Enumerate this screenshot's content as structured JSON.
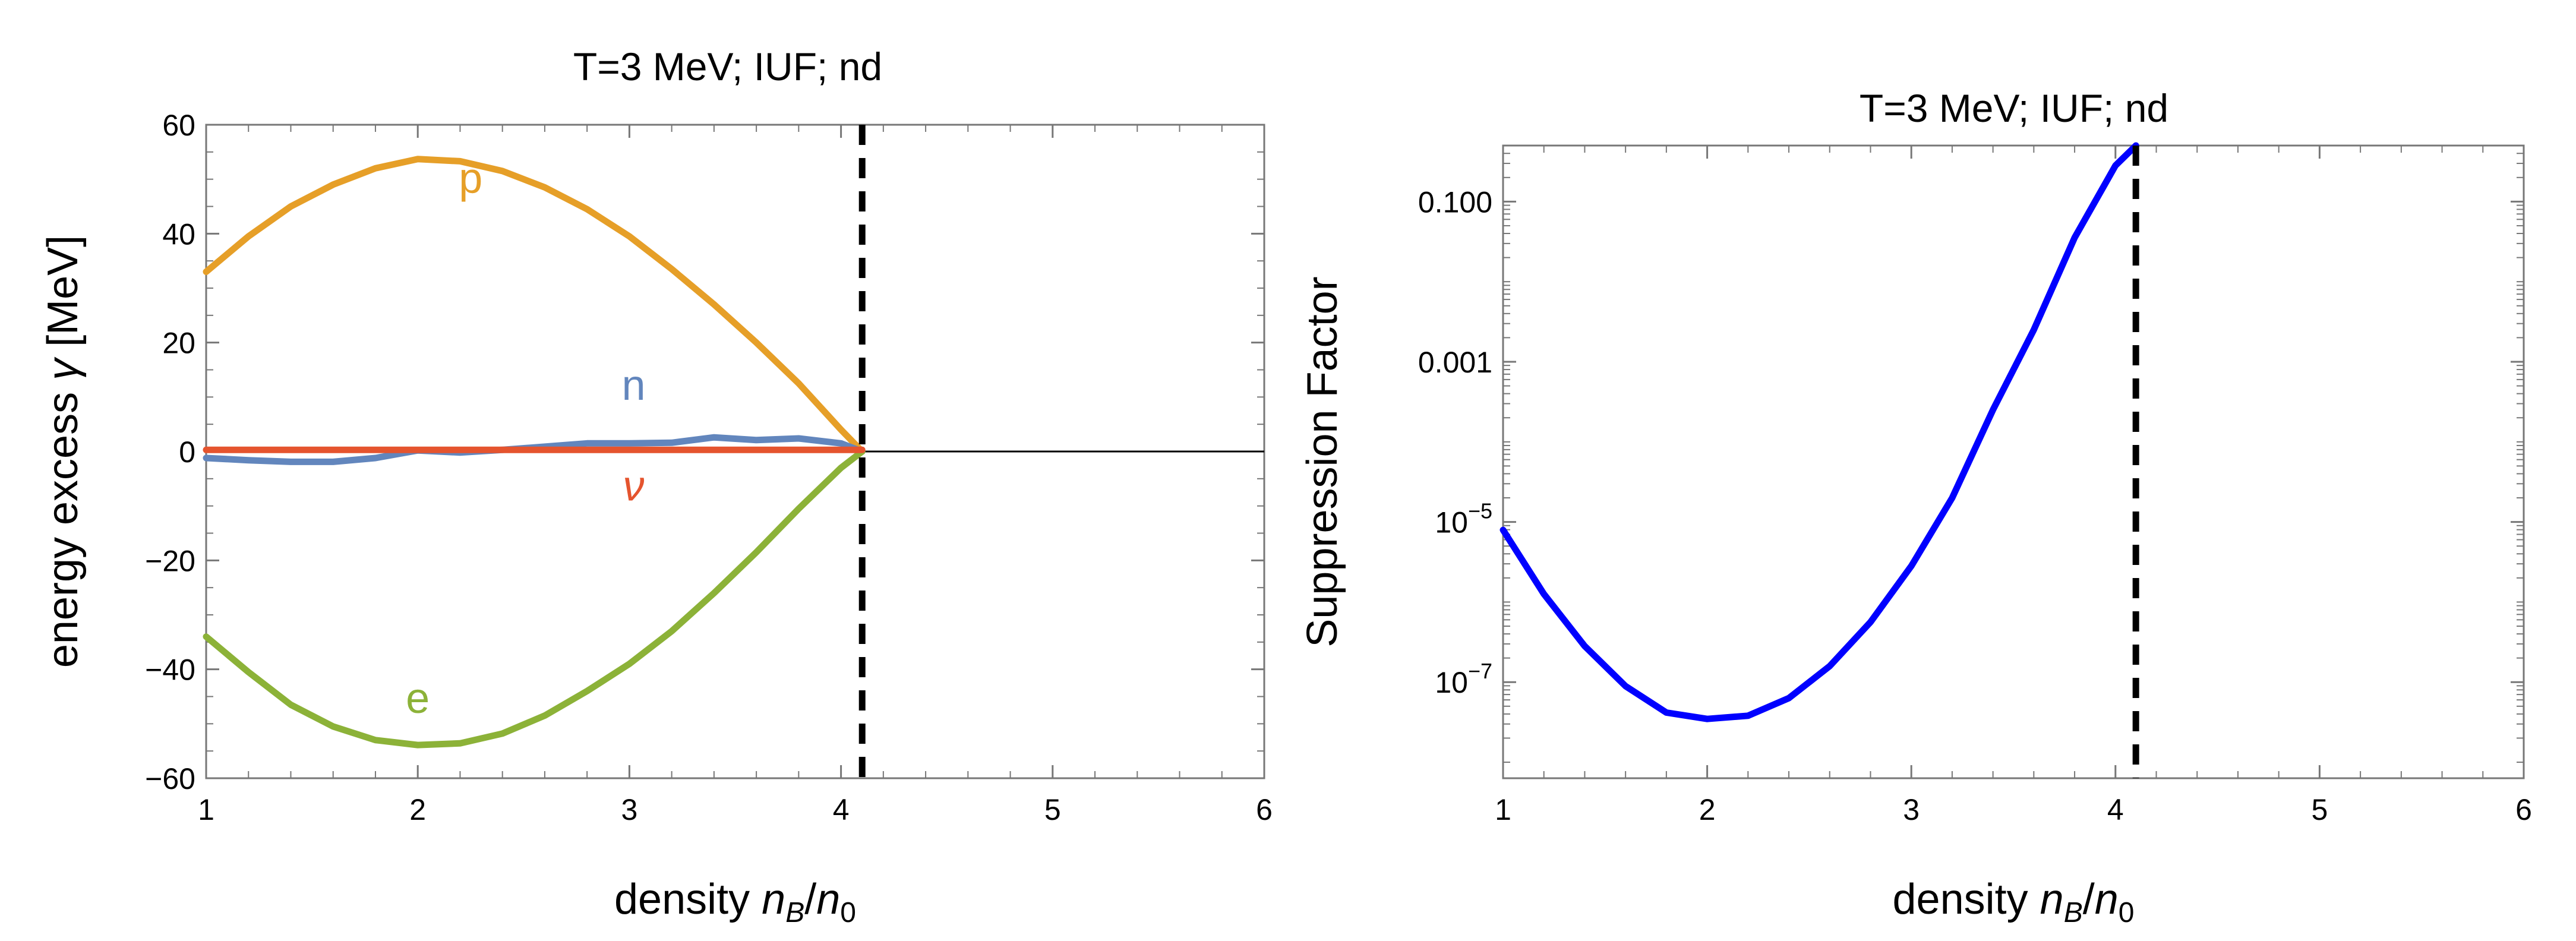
{
  "chart_data": [
    {
      "type": "line",
      "title": "T=3 MeV; IUF; nd",
      "xlabel": {
        "main": "density ",
        "n1": "n",
        "sub1": "B",
        "slash": "/",
        "n2": "n",
        "sub2": "0"
      },
      "ylabel": {
        "main": "energy excess ",
        "sym": "γ",
        "unit": " [MeV]"
      },
      "xlim": [
        1,
        6
      ],
      "ylim": [
        -60,
        60
      ],
      "xticks": [
        1,
        2,
        3,
        4,
        5,
        6
      ],
      "yticks": [
        -60,
        -40,
        -20,
        0,
        20,
        40,
        60
      ],
      "grid": false,
      "zero_line": true,
      "vline_x": 4.1,
      "series": [
        {
          "name": "p",
          "color": "#E69F28",
          "x": [
            1.0,
            1.2,
            1.4,
            1.6,
            1.8,
            2.0,
            2.2,
            2.4,
            2.6,
            2.8,
            3.0,
            3.2,
            3.4,
            3.6,
            3.8,
            4.0,
            4.1
          ],
          "y": [
            33,
            39.5,
            45,
            49,
            52,
            53.7,
            53.3,
            51.5,
            48.5,
            44.5,
            39.5,
            33.5,
            27,
            20,
            12.5,
            4,
            0
          ],
          "label_pos": [
            2.25,
            47.5
          ]
        },
        {
          "name": "n",
          "color": "#6286BD",
          "x": [
            1.0,
            1.2,
            1.4,
            1.6,
            1.8,
            2.0,
            2.2,
            2.4,
            2.6,
            2.8,
            3.0,
            3.2,
            3.4,
            3.6,
            3.8,
            4.0,
            4.1
          ],
          "y": [
            -1.2,
            -1.6,
            -1.9,
            -1.9,
            -1.2,
            0.2,
            -0.2,
            0.3,
            0.9,
            1.5,
            1.5,
            1.6,
            2.6,
            2.1,
            2.4,
            1.5,
            0
          ],
          "label_pos": [
            3.02,
            9.5
          ]
        },
        {
          "name": "e",
          "color": "#8CB238",
          "x": [
            1.0,
            1.2,
            1.4,
            1.6,
            1.8,
            2.0,
            2.2,
            2.4,
            2.6,
            2.8,
            3.0,
            3.2,
            3.4,
            3.6,
            3.8,
            4.0,
            4.1
          ],
          "y": [
            -34,
            -40.5,
            -46.5,
            -50.5,
            -53,
            -53.9,
            -53.6,
            -51.8,
            -48.5,
            -44,
            -39,
            -33,
            -26,
            -18.5,
            -10.5,
            -3,
            0
          ],
          "label_pos": [
            2.0,
            -48
          ]
        },
        {
          "name": "ν",
          "color": "#E5542E",
          "x": [
            1.0,
            4.1
          ],
          "y": [
            0.3,
            0.3
          ],
          "label_pos": [
            3.02,
            -9
          ]
        }
      ]
    },
    {
      "type": "line",
      "title": "T=3 MeV; IUF; nd",
      "xlabel": {
        "main": "density ",
        "n1": "n",
        "sub1": "B",
        "slash": "/",
        "n2": "n",
        "sub2": "0"
      },
      "ylabel": "Suppression Factor",
      "xlim": [
        1,
        6
      ],
      "ylim_log10": [
        -8.2,
        -0.3
      ],
      "yscale": "log",
      "xticks": [
        1,
        2,
        3,
        4,
        5,
        6
      ],
      "yticks": [
        {
          "exp": -7,
          "text": "10",
          "sup": "−7"
        },
        {
          "exp": -5,
          "text": "10",
          "sup": "−5"
        },
        {
          "exp": -3,
          "text": "0.001",
          "sup": ""
        },
        {
          "exp": -1,
          "text": "0.100",
          "sup": ""
        }
      ],
      "grid": false,
      "vline_x": 4.1,
      "series": [
        {
          "name": "",
          "color": "#0000FF",
          "x": [
            1.0,
            1.2,
            1.4,
            1.6,
            1.8,
            2.0,
            2.2,
            2.4,
            2.6,
            2.8,
            3.0,
            3.2,
            3.4,
            3.6,
            3.8,
            4.0,
            4.1
          ],
          "y_log10": [
            -5.1,
            -5.9,
            -6.55,
            -7.05,
            -7.38,
            -7.46,
            -7.42,
            -7.2,
            -6.8,
            -6.25,
            -5.55,
            -4.7,
            -3.6,
            -2.6,
            -1.45,
            -0.55,
            -0.3
          ]
        }
      ]
    }
  ]
}
